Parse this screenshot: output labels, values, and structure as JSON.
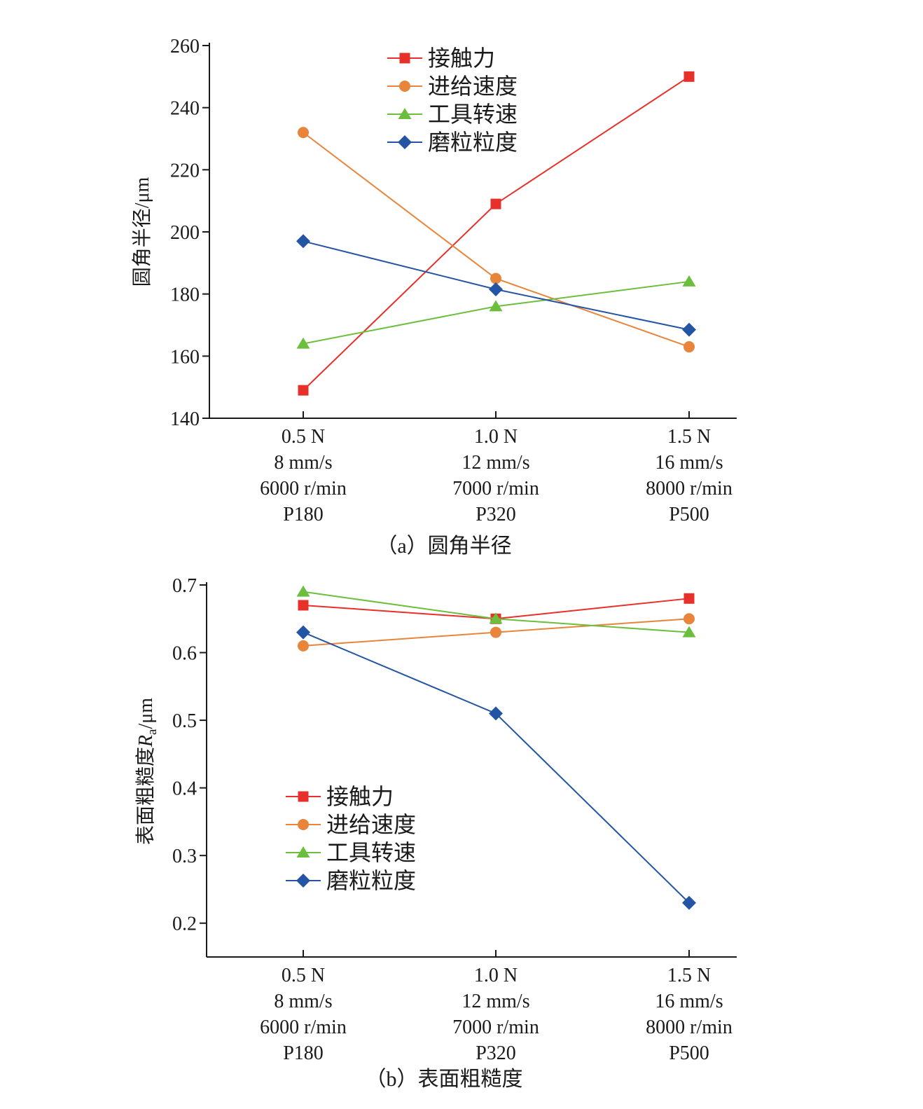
{
  "colors": {
    "contact_force": "#e8302a",
    "feed_speed": "#e8853a",
    "spindle_speed": "#6cbf3c",
    "grit_size": "#2455a4",
    "axis": "#1a1a1a"
  },
  "legend_labels": [
    "接触力",
    "进给速度",
    "工具转速",
    "磨粒粒度"
  ],
  "chart_data": [
    {
      "type": "line",
      "caption": "（a）圆角半径",
      "ylabel": "圆角半径/μm",
      "ylim": [
        140,
        260
      ],
      "yticks": [
        "140",
        "160",
        "180",
        "200",
        "220",
        "240",
        "260"
      ],
      "categories": [
        [
          "0.5 N",
          "8 mm/s",
          "6000 r/min",
          "P180"
        ],
        [
          "1.0 N",
          "12 mm/s",
          "7000 r/min",
          "P320"
        ],
        [
          "1.5 N",
          "16 mm/s",
          "8000 r/min",
          "P500"
        ]
      ],
      "legend_position": "top-center",
      "grid": false,
      "series": [
        {
          "name": "接触力",
          "marker": "square",
          "color_key": "contact_force",
          "values": [
            149,
            209,
            250
          ]
        },
        {
          "name": "进给速度",
          "marker": "circle",
          "color_key": "feed_speed",
          "values": [
            232,
            185,
            163
          ]
        },
        {
          "name": "工具转速",
          "marker": "triangle",
          "color_key": "spindle_speed",
          "values": [
            164,
            176,
            184
          ]
        },
        {
          "name": "磨粒粒度",
          "marker": "diamond",
          "color_key": "grit_size",
          "values": [
            197,
            181.5,
            168.5
          ]
        }
      ]
    },
    {
      "type": "line",
      "caption": "（b）表面粗糙度",
      "ylabel_main": "表面粗糙度",
      "ylabel_var": "R",
      "ylabel_sub": "a",
      "ylabel_unit": "/μm",
      "ylim": [
        0.15,
        0.7
      ],
      "yticks": [
        "0.2",
        "0.3",
        "0.4",
        "0.5",
        "0.6",
        "0.7"
      ],
      "categories": [
        [
          "0.5 N",
          "8 mm/s",
          "6000 r/min",
          "P180"
        ],
        [
          "1.0 N",
          "12 mm/s",
          "7000 r/min",
          "P320"
        ],
        [
          "1.5 N",
          "16 mm/s",
          "8000 r/min",
          "P500"
        ]
      ],
      "legend_position": "center-left",
      "grid": false,
      "series": [
        {
          "name": "接触力",
          "marker": "square",
          "color_key": "contact_force",
          "values": [
            0.67,
            0.65,
            0.68
          ]
        },
        {
          "name": "进给速度",
          "marker": "circle",
          "color_key": "feed_speed",
          "values": [
            0.61,
            0.63,
            0.65
          ]
        },
        {
          "name": "工具转速",
          "marker": "triangle",
          "color_key": "spindle_speed",
          "values": [
            0.69,
            0.65,
            0.63
          ]
        },
        {
          "name": "磨粒粒度",
          "marker": "diamond",
          "color_key": "grit_size",
          "values": [
            0.63,
            0.51,
            0.23
          ]
        }
      ]
    }
  ]
}
